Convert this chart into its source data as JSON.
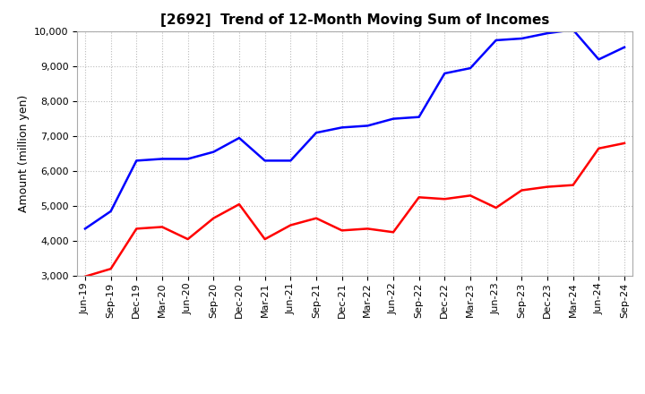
{
  "title": "[2692]  Trend of 12-Month Moving Sum of Incomes",
  "ylabel": "Amount (million yen)",
  "ylim": [
    3000,
    10000
  ],
  "yticks": [
    3000,
    4000,
    5000,
    6000,
    7000,
    8000,
    9000,
    10000
  ],
  "x_labels": [
    "Jun-19",
    "Sep-19",
    "Dec-19",
    "Mar-20",
    "Jun-20",
    "Sep-20",
    "Dec-20",
    "Mar-21",
    "Jun-21",
    "Sep-21",
    "Dec-21",
    "Mar-22",
    "Jun-22",
    "Sep-22",
    "Dec-22",
    "Mar-23",
    "Jun-23",
    "Sep-23",
    "Dec-23",
    "Mar-24",
    "Jun-24",
    "Sep-24"
  ],
  "ordinary_income": [
    4350,
    4850,
    6300,
    6350,
    6350,
    6550,
    6950,
    6300,
    6300,
    7100,
    7250,
    7300,
    7500,
    7550,
    8800,
    8950,
    9750,
    9800,
    9950,
    10050,
    9200,
    9550
  ],
  "net_income": [
    2980,
    3200,
    4350,
    4400,
    4050,
    4650,
    5050,
    4050,
    4450,
    4650,
    4300,
    4350,
    4250,
    5250,
    5200,
    5300,
    4950,
    5450,
    5550,
    5600,
    6650,
    6800
  ],
  "ordinary_color": "#0000ff",
  "net_color": "#ff0000",
  "line_width": 1.8,
  "title_fontsize": 11,
  "label_fontsize": 9,
  "tick_fontsize": 8,
  "legend_fontsize": 9,
  "background_color": "#ffffff",
  "grid_color": "#bbbbbb",
  "grid_style": ":"
}
